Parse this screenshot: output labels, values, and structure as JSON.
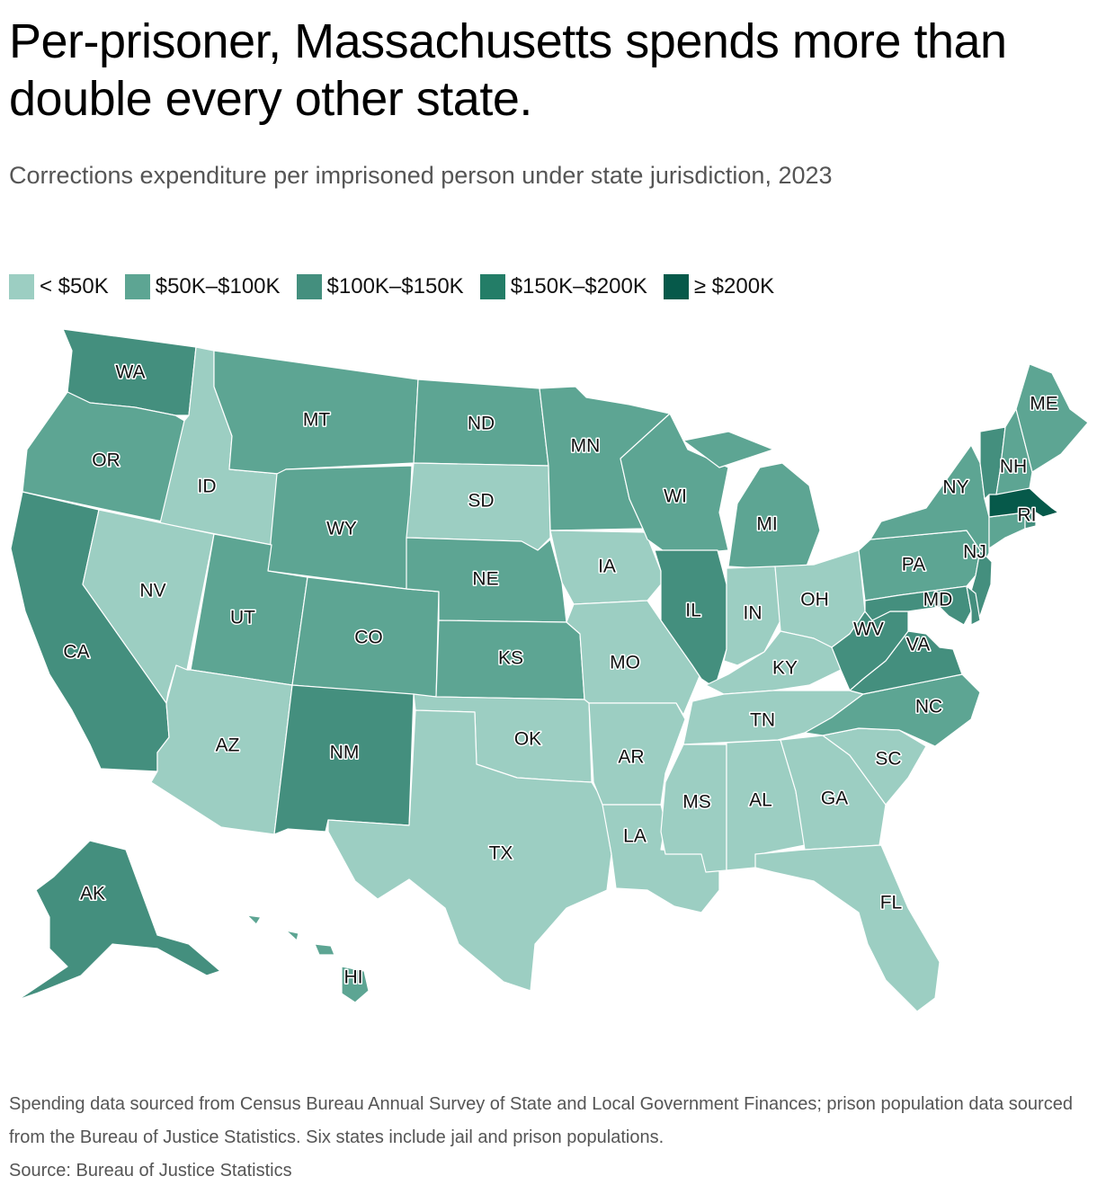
{
  "title": "Per-prisoner, Massachusetts spends more than double every other state.",
  "subtitle": "Corrections expenditure per imprisoned person under state jurisdiction, 2023",
  "legend": [
    {
      "label": "< $50K",
      "color": "#9ccec2"
    },
    {
      "label": "$50K–$100K",
      "color": "#5da593"
    },
    {
      "label": "$100K–$150K",
      "color": "#448f7e"
    },
    {
      "label": "$150K–$200K",
      "color": "#237d67"
    },
    {
      "label": "≥ $200K",
      "color": "#06594a"
    }
  ],
  "states": [
    {
      "abbr": "WA",
      "bin": 2
    },
    {
      "abbr": "OR",
      "bin": 1
    },
    {
      "abbr": "CA",
      "bin": 2
    },
    {
      "abbr": "ID",
      "bin": 0
    },
    {
      "abbr": "NV",
      "bin": 0
    },
    {
      "abbr": "MT",
      "bin": 1
    },
    {
      "abbr": "WY",
      "bin": 1
    },
    {
      "abbr": "UT",
      "bin": 1
    },
    {
      "abbr": "AZ",
      "bin": 0
    },
    {
      "abbr": "CO",
      "bin": 1
    },
    {
      "abbr": "NM",
      "bin": 2
    },
    {
      "abbr": "ND",
      "bin": 1
    },
    {
      "abbr": "SD",
      "bin": 0
    },
    {
      "abbr": "NE",
      "bin": 1
    },
    {
      "abbr": "KS",
      "bin": 1
    },
    {
      "abbr": "OK",
      "bin": 0
    },
    {
      "abbr": "TX",
      "bin": 0
    },
    {
      "abbr": "MN",
      "bin": 1
    },
    {
      "abbr": "IA",
      "bin": 0
    },
    {
      "abbr": "MO",
      "bin": 0
    },
    {
      "abbr": "AR",
      "bin": 0
    },
    {
      "abbr": "LA",
      "bin": 0
    },
    {
      "abbr": "WI",
      "bin": 1
    },
    {
      "abbr": "IL",
      "bin": 2
    },
    {
      "abbr": "MI",
      "bin": 1
    },
    {
      "abbr": "IN",
      "bin": 0
    },
    {
      "abbr": "OH",
      "bin": 0
    },
    {
      "abbr": "KY",
      "bin": 0
    },
    {
      "abbr": "TN",
      "bin": 0
    },
    {
      "abbr": "MS",
      "bin": 0
    },
    {
      "abbr": "AL",
      "bin": 0
    },
    {
      "abbr": "GA",
      "bin": 0
    },
    {
      "abbr": "FL",
      "bin": 0
    },
    {
      "abbr": "SC",
      "bin": 0
    },
    {
      "abbr": "NC",
      "bin": 1
    },
    {
      "abbr": "VA",
      "bin": 2
    },
    {
      "abbr": "WV",
      "bin": 2
    },
    {
      "abbr": "PA",
      "bin": 1
    },
    {
      "abbr": "NY",
      "bin": 1
    },
    {
      "abbr": "NJ",
      "bin": 2
    },
    {
      "abbr": "MD",
      "bin": 2
    },
    {
      "abbr": "DE",
      "bin": 2
    },
    {
      "abbr": "CT",
      "bin": 1
    },
    {
      "abbr": "RI",
      "bin": 2
    },
    {
      "abbr": "MA",
      "bin": 4
    },
    {
      "abbr": "VT",
      "bin": 2
    },
    {
      "abbr": "NH",
      "bin": 1
    },
    {
      "abbr": "ME",
      "bin": 1
    },
    {
      "abbr": "AK",
      "bin": 2
    },
    {
      "abbr": "HI",
      "bin": 1
    }
  ],
  "footnote": "Spending data sourced from Census Bureau Annual Survey of State and Local Government Finances; prison population data sourced from the Bureau of Justice Statistics. Six states include jail and prison populations.",
  "source": "Source: Bureau of Justice Statistics"
}
